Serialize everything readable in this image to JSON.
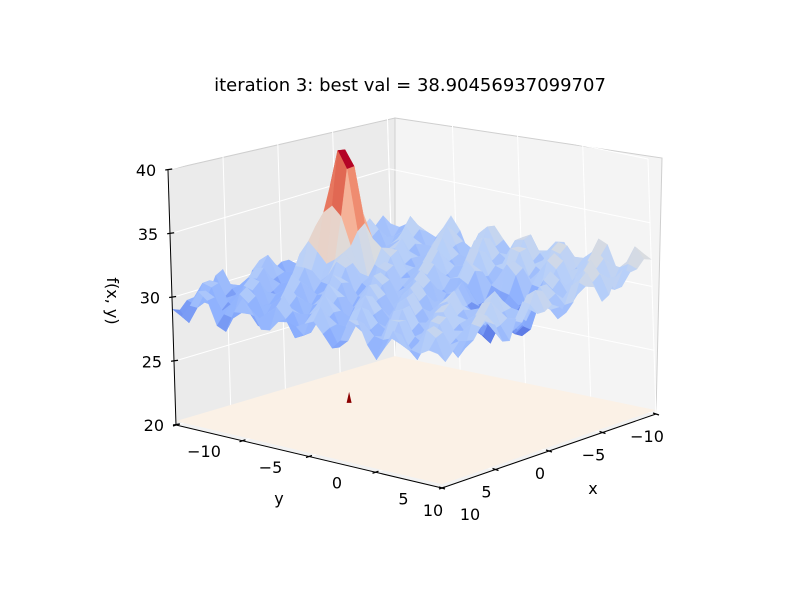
{
  "chart_data": {
    "type": "surface3d",
    "title": "iteration 3: best val = 38.90456937099707",
    "xlabel": "x",
    "ylabel": "y",
    "zlabel": "f(x, y)",
    "xlim": [
      -10,
      10
    ],
    "ylim": [
      -10,
      10
    ],
    "zlim": [
      20,
      40
    ],
    "x_ticks": [
      -10,
      -5,
      0,
      5,
      10
    ],
    "y_ticks": [
      -10,
      -5,
      0,
      5,
      10
    ],
    "z_ticks": [
      20,
      25,
      30,
      35,
      40
    ],
    "x_tick_labels": [
      "−10",
      "−5",
      "0",
      "5",
      "10"
    ],
    "y_tick_labels": [
      "−10",
      "−5",
      "0",
      "5",
      "10"
    ],
    "z_tick_labels": [
      "20",
      "25",
      "30",
      "35",
      "40"
    ],
    "colormap": "coolwarm",
    "grid": true,
    "surface": {
      "baseline": 30,
      "ripple_amplitude": 1.6,
      "peak": {
        "x": -6,
        "y": -1,
        "value": 38.9
      },
      "trough": {
        "x": 5,
        "y": -2,
        "value": 26.5
      }
    },
    "contour_floor": {
      "z": 20,
      "marker": {
        "x": -6,
        "y": -1,
        "color": "#8b0000"
      }
    }
  }
}
